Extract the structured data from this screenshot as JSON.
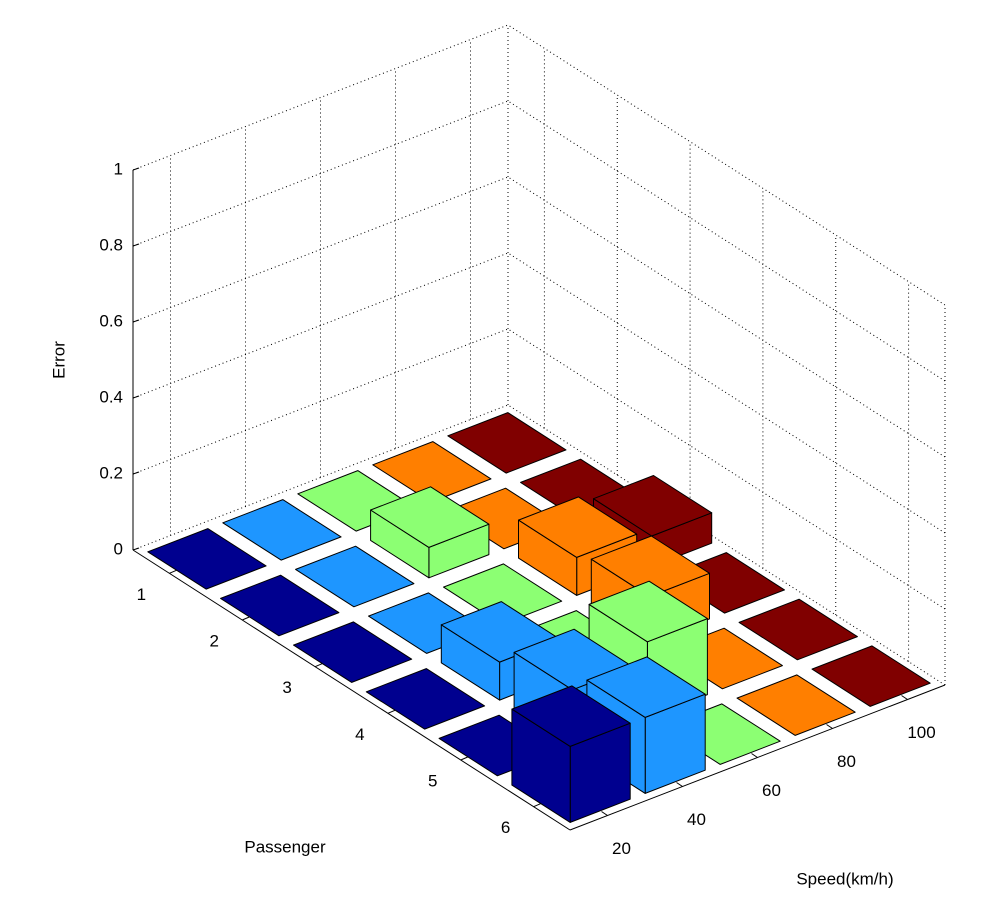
{
  "chart_data": {
    "type": "bar3d",
    "zlabel": "Error",
    "xlabel": "Passenger",
    "ylabel": "Speed(km/h)",
    "passengers": [
      1,
      2,
      3,
      4,
      5,
      6
    ],
    "speeds": [
      20,
      40,
      60,
      80,
      100
    ],
    "xlim": [
      0.5,
      6.5
    ],
    "ylim": [
      10,
      110
    ],
    "zlim": [
      0,
      1
    ],
    "zticks": [
      0,
      0.2,
      0.4,
      0.6,
      0.8,
      1
    ],
    "grid": true,
    "series": [
      {
        "color": "#00008f",
        "values": [
          0,
          0,
          0,
          0,
          0,
          0.2
        ]
      },
      {
        "color": "#1e96ff",
        "values": [
          0,
          0,
          0,
          0.1,
          0.15,
          0.2
        ]
      },
      {
        "color": "#8cff73",
        "values": [
          0,
          0.08,
          0,
          0,
          0.2,
          0
        ]
      },
      {
        "color": "#ff7f00",
        "values": [
          0,
          0,
          0.1,
          0.12,
          0,
          0
        ]
      },
      {
        "color": "#800000",
        "values": [
          0,
          0,
          0.08,
          0,
          0,
          0
        ]
      }
    ]
  }
}
